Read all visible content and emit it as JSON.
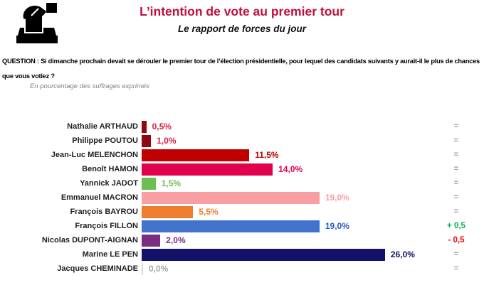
{
  "header": {
    "icon": "ballot-box-icon",
    "title": "L’intention de vote au premier tour",
    "subtitle": "Le rapport de forces du jour"
  },
  "question": {
    "line1": "QUESTION : Si dimanche prochain devait se dérouler le premier tour de l’élection présidentielle, pour lequel des candidats suivants y aurait-il le plus de chances",
    "line2": "que vous votiez ?",
    "note": "En pourcentage des suffrages exprimés"
  },
  "colors": {
    "title": "#C00F3C",
    "candidate_label": "#1F1F1F",
    "note_gray": "#808080",
    "equal_gray": "#A6A6A6",
    "gain_green": "#00B050",
    "loss_red": "#FF0000"
  },
  "chart_data": {
    "type": "bar",
    "orientation": "horizontal",
    "title": "L’intention de vote au premier tour",
    "subtitle": "Le rapport de forces du jour",
    "unit": "% des suffrages exprimés",
    "xlim": [
      0,
      26
    ],
    "grid": false,
    "legend": "none",
    "categories": [
      "Nathalie ARTHAUD",
      "Philippe POUTOU",
      "Jean-Luc MELENCHON",
      "Benoît HAMON",
      "Yannick JADOT",
      "Emmanuel MACRON",
      "François BAYROU",
      "François FILLON",
      "Nicolas DUPONT-AIGNAN",
      "Marine LE PEN",
      "Jacques CHEMINADE"
    ],
    "values": [
      0.5,
      1.0,
      11.5,
      14.0,
      1.5,
      19.0,
      5.5,
      19.0,
      2.0,
      26.0,
      0.0
    ],
    "value_labels": [
      "0,5%",
      "1,0%",
      "11,5%",
      "14,0%",
      "1,5%",
      "19,0%",
      "5,5%",
      "19,0%",
      "2,0%",
      "26,0%",
      "0,0%"
    ],
    "changes": [
      "=",
      "=",
      "=",
      "=",
      "=",
      "=",
      "=",
      "+ 0,5",
      "- 0,5",
      "=",
      "="
    ],
    "bar_colors": [
      "#8E0712",
      "#8E0712",
      "#C00000",
      "#E0004D",
      "#6CBE50",
      "#F99FA4",
      "#EF7D2E",
      "#4273CC",
      "#7B2D82",
      "#131268",
      "#D9D9D9"
    ],
    "value_colors": [
      "#DC1E3C",
      "#DC1E3C",
      "#C00000",
      "#E0004D",
      "#6CBE50",
      "#F99FA4",
      "#EF7D2E",
      "#2B5DC7",
      "#7B2D82",
      "#131268",
      "#A6A6A6"
    ],
    "change_colors": [
      "#A6A6A6",
      "#A6A6A6",
      "#A6A6A6",
      "#A6A6A6",
      "#A6A6A6",
      "#A6A6A6",
      "#A6A6A6",
      "#00B050",
      "#FF0000",
      "#A6A6A6",
      "#A6A6A6"
    ]
  }
}
